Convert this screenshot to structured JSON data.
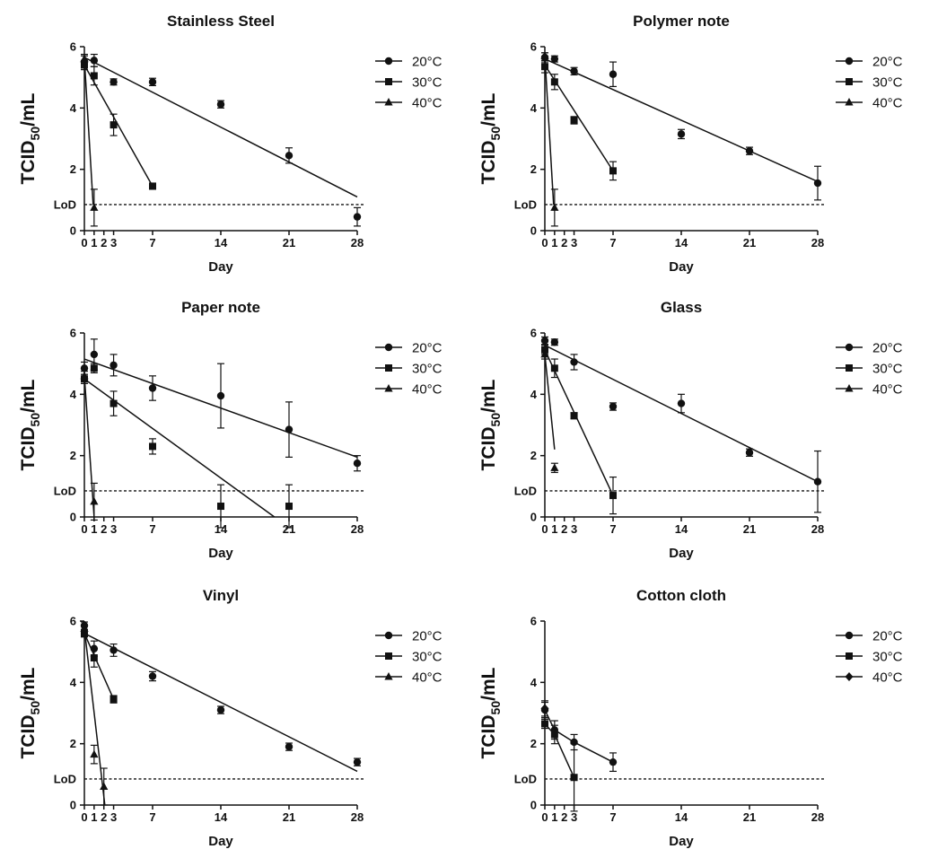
{
  "figure": {
    "ylabel": "TCID",
    "ylabel_sub": "50",
    "ylabel_suffix": "/mL",
    "xlabel": "Day",
    "lod_label": "LoD",
    "lod_value": 0.85
  },
  "chart_data": [
    {
      "type": "scatter",
      "title": "Stainless Steel",
      "xlabel": "Day",
      "ylabel": "TCID50/mL",
      "xticks": [
        0,
        1,
        2,
        3,
        7,
        14,
        21,
        28
      ],
      "yticks": [
        0,
        2,
        4,
        6
      ],
      "xlim": [
        0,
        28
      ],
      "ylim": [
        0,
        6
      ],
      "series": [
        {
          "name": "20°C",
          "marker": "circle",
          "points": [
            [
              0,
              5.5,
              0.2
            ],
            [
              1,
              5.55,
              0.2
            ],
            [
              3,
              4.85,
              0.1
            ],
            [
              7,
              4.85,
              0.12
            ],
            [
              14,
              4.12,
              0.12
            ],
            [
              21,
              2.45,
              0.25
            ],
            [
              28,
              0.45,
              0.3
            ]
          ],
          "fit": [
            [
              0,
              5.65
            ],
            [
              28,
              1.1
            ]
          ]
        },
        {
          "name": "30°C",
          "marker": "square",
          "points": [
            [
              0,
              5.4,
              0.15
            ],
            [
              1,
              5.05,
              0.3
            ],
            [
              3,
              3.45,
              0.35
            ],
            [
              7,
              1.45,
              0.1
            ]
          ],
          "fit": [
            [
              0,
              5.4
            ],
            [
              7,
              1.45
            ]
          ]
        },
        {
          "name": "40°C",
          "marker": "triangle",
          "points": [
            [
              0,
              5.6,
              0.15
            ],
            [
              1,
              0.75,
              0.6
            ]
          ],
          "fit": [
            [
              0,
              5.6
            ],
            [
              0.9,
              0.85
            ]
          ]
        }
      ]
    },
    {
      "type": "scatter",
      "title": "Polymer note",
      "xlabel": "Day",
      "ylabel": "TCID50/mL",
      "xticks": [
        0,
        1,
        2,
        3,
        7,
        14,
        21,
        28
      ],
      "yticks": [
        0,
        2,
        4,
        6
      ],
      "xlim": [
        0,
        28
      ],
      "ylim": [
        0,
        6
      ],
      "series": [
        {
          "name": "20°C",
          "marker": "circle",
          "points": [
            [
              0,
              5.65,
              0.15
            ],
            [
              1,
              5.6,
              0.1
            ],
            [
              3,
              5.2,
              0.12
            ],
            [
              7,
              5.1,
              0.4
            ],
            [
              14,
              3.15,
              0.15
            ],
            [
              21,
              2.6,
              0.12
            ],
            [
              28,
              1.55,
              0.55
            ]
          ],
          "fit": [
            [
              0,
              5.6
            ],
            [
              28,
              1.6
            ]
          ]
        },
        {
          "name": "30°C",
          "marker": "square",
          "points": [
            [
              0,
              5.35,
              0.2
            ],
            [
              1,
              4.85,
              0.25
            ],
            [
              3,
              3.6,
              0.12
            ],
            [
              7,
              1.95,
              0.3
            ]
          ],
          "fit": [
            [
              0,
              5.4
            ],
            [
              7,
              1.95
            ]
          ]
        },
        {
          "name": "40°C",
          "marker": "triangle",
          "points": [
            [
              0,
              5.7,
              0.1
            ],
            [
              1,
              0.75,
              0.6
            ]
          ],
          "fit": [
            [
              0,
              5.7
            ],
            [
              0.9,
              0.85
            ]
          ]
        }
      ]
    },
    {
      "type": "scatter",
      "title": "Paper note",
      "xlabel": "Day",
      "ylabel": "TCID50/mL",
      "xticks": [
        0,
        1,
        2,
        3,
        7,
        14,
        21,
        28
      ],
      "yticks": [
        0,
        2,
        4,
        6
      ],
      "xlim": [
        0,
        28
      ],
      "ylim": [
        0,
        6
      ],
      "series": [
        {
          "name": "20°C",
          "marker": "circle",
          "points": [
            [
              0,
              4.85,
              0.2
            ],
            [
              1,
              5.3,
              0.5
            ],
            [
              3,
              4.95,
              0.35
            ],
            [
              7,
              4.2,
              0.4
            ],
            [
              14,
              3.95,
              1.05
            ],
            [
              21,
              2.85,
              0.9
            ],
            [
              28,
              1.75,
              0.25
            ]
          ],
          "fit": [
            [
              0,
              5.15
            ],
            [
              28,
              1.95
            ]
          ]
        },
        {
          "name": "30°C",
          "marker": "square",
          "points": [
            [
              0,
              4.5,
              0.15
            ],
            [
              1,
              4.85,
              0.15
            ],
            [
              3,
              3.7,
              0.4
            ],
            [
              7,
              2.3,
              0.25
            ],
            [
              14,
              0.35,
              0.7
            ],
            [
              21,
              0.35,
              0.7
            ]
          ],
          "fit": [
            [
              0,
              4.5
            ],
            [
              19.5,
              0
            ]
          ]
        },
        {
          "name": "40°C",
          "marker": "triangle",
          "points": [
            [
              0,
              4.6,
              0.15
            ],
            [
              1,
              0.5,
              0.6
            ]
          ],
          "fit": [
            [
              0,
              4.6
            ],
            [
              1,
              0
            ]
          ]
        }
      ]
    },
    {
      "type": "scatter",
      "title": "Glass",
      "xlabel": "Day",
      "ylabel": "TCID50/mL",
      "xticks": [
        0,
        1,
        2,
        3,
        7,
        14,
        21,
        28
      ],
      "yticks": [
        0,
        2,
        4,
        6
      ],
      "xlim": [
        0,
        28
      ],
      "ylim": [
        0,
        6
      ],
      "series": [
        {
          "name": "20°C",
          "marker": "circle",
          "points": [
            [
              0,
              5.75,
              0.12
            ],
            [
              1,
              5.7,
              0.1
            ],
            [
              3,
              5.05,
              0.25
            ],
            [
              7,
              3.6,
              0.12
            ],
            [
              14,
              3.7,
              0.3
            ],
            [
              21,
              2.1,
              0.12
            ],
            [
              28,
              1.15,
              1.0
            ]
          ],
          "fit": [
            [
              0,
              5.6
            ],
            [
              28,
              1.15
            ]
          ]
        },
        {
          "name": "30°C",
          "marker": "square",
          "points": [
            [
              0,
              5.45,
              0.15
            ],
            [
              1,
              4.85,
              0.3
            ],
            [
              3,
              3.3,
              0.1
            ],
            [
              7,
              0.7,
              0.6
            ]
          ],
          "fit": [
            [
              0,
              5.45
            ],
            [
              7,
              0.7
            ]
          ]
        },
        {
          "name": "40°C",
          "marker": "triangle",
          "points": [
            [
              0,
              5.3,
              0.15
            ],
            [
              1,
              1.6,
              0.15
            ]
          ],
          "fit": [
            [
              0,
              5.3
            ],
            [
              1,
              2.2
            ]
          ]
        }
      ]
    },
    {
      "type": "scatter",
      "title": "Vinyl",
      "xlabel": "Day",
      "ylabel": "TCID50/mL",
      "xticks": [
        0,
        1,
        2,
        3,
        7,
        14,
        21,
        28
      ],
      "yticks": [
        0,
        2,
        4,
        6
      ],
      "xlim": [
        0,
        28
      ],
      "ylim": [
        0,
        6
      ],
      "series": [
        {
          "name": "20°C",
          "marker": "circle",
          "points": [
            [
              0,
              5.85,
              0.12
            ],
            [
              1,
              5.1,
              0.25
            ],
            [
              3,
              5.05,
              0.2
            ],
            [
              7,
              4.2,
              0.15
            ],
            [
              14,
              3.1,
              0.12
            ],
            [
              21,
              1.9,
              0.12
            ],
            [
              28,
              1.4,
              0.12
            ]
          ],
          "fit": [
            [
              0,
              5.6
            ],
            [
              28,
              1.1
            ]
          ]
        },
        {
          "name": "30°C",
          "marker": "square",
          "points": [
            [
              0,
              5.6,
              0.12
            ],
            [
              1,
              4.8,
              0.3
            ],
            [
              3,
              3.45,
              0.12
            ]
          ],
          "fit": [
            [
              0,
              5.6
            ],
            [
              3,
              3.45
            ]
          ]
        },
        {
          "name": "40°C",
          "marker": "triangle",
          "points": [
            [
              0,
              5.75,
              0.12
            ],
            [
              1,
              1.65,
              0.3
            ],
            [
              2,
              0.6,
              0.6
            ]
          ],
          "fit": [
            [
              0,
              5.75
            ],
            [
              2.1,
              0
            ]
          ]
        }
      ]
    },
    {
      "type": "line",
      "title": "Cotton cloth",
      "xlabel": "Day",
      "ylabel": "TCID50/mL",
      "xticks": [
        0,
        1,
        2,
        3,
        7,
        14,
        21,
        28
      ],
      "yticks": [
        0,
        2,
        4,
        6
      ],
      "xlim": [
        0,
        28
      ],
      "ylim": [
        0,
        6
      ],
      "series": [
        {
          "name": "20°C",
          "marker": "circle",
          "points": [
            [
              0,
              3.1,
              0.25
            ],
            [
              1,
              2.45,
              0.3
            ],
            [
              3,
              2.05,
              0.25
            ],
            [
              7,
              1.4,
              0.3
            ]
          ],
          "connect": true
        },
        {
          "name": "30°C",
          "marker": "square",
          "points": [
            [
              0,
              2.65,
              0.15
            ],
            [
              1,
              2.3,
              0.3
            ],
            [
              3,
              0.9,
              1.1
            ]
          ],
          "connect": true
        },
        {
          "name": "40°C",
          "marker": "diamond",
          "points": [
            [
              0,
              3.15,
              0.25
            ]
          ],
          "connect": true
        }
      ]
    }
  ]
}
